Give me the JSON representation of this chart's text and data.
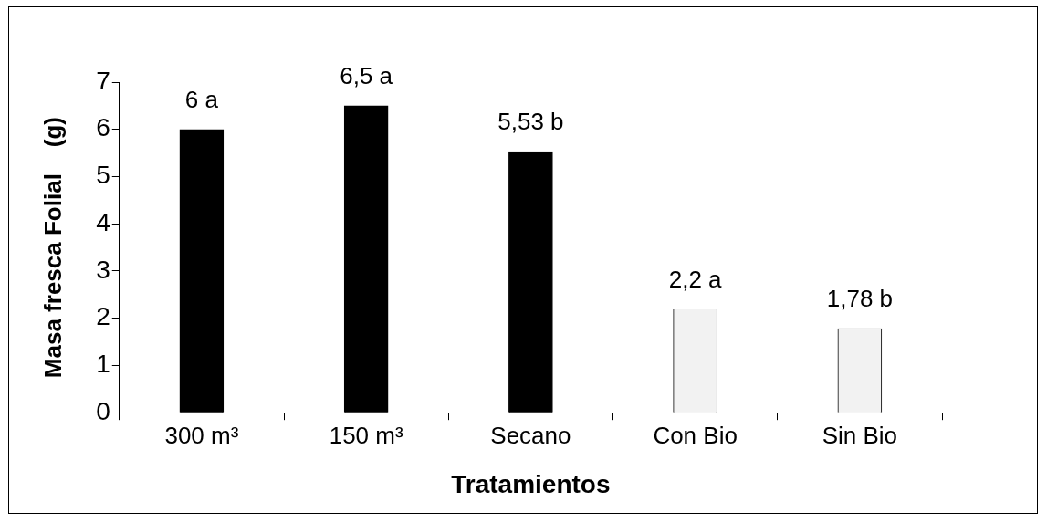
{
  "chart_data": {
    "type": "bar",
    "xlabel": "Tratamientos",
    "ylabel": "Masa fresca Folial    (g)",
    "categories": [
      "300 m³",
      "150 m³",
      "Secano",
      "Con Bio",
      "Sin Bio"
    ],
    "values": [
      6,
      6.5,
      5.53,
      2.2,
      1.78
    ],
    "colors": [
      "#000000",
      "#000000",
      "#000000",
      "#f2f2f2",
      "#f2f2f2"
    ],
    "value_labels": [
      "6 a",
      "6,5 a",
      "5,53 b",
      "2,2 a",
      "1,78 b"
    ],
    "ylim": [
      0,
      7
    ],
    "yticks": [
      0,
      1,
      2,
      3,
      4,
      5,
      6,
      7
    ],
    "grid": false,
    "legend": false
  }
}
